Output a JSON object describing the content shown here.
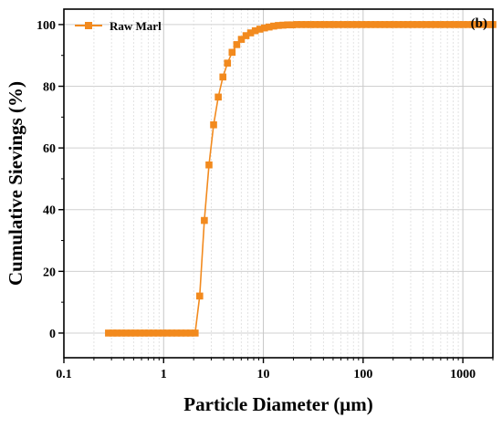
{
  "chart_data": {
    "type": "line",
    "panel_label": "(b)",
    "xlabel": "Particle Diameter (μm)",
    "ylabel": "Cumulative Sievings (%)",
    "x_scale": "log",
    "xlim": [
      0.1,
      2000
    ],
    "ylim": [
      -8,
      105
    ],
    "x_ticks": [
      0.1,
      1,
      10,
      100,
      1000
    ],
    "x_tick_labels": [
      "0.1",
      "1",
      "10",
      "100",
      "1000"
    ],
    "y_ticks": [
      0,
      20,
      40,
      60,
      80,
      100
    ],
    "y_tick_labels": [
      "0",
      "20",
      "40",
      "60",
      "80",
      "100"
    ],
    "grid": true,
    "legend_position": "top-left",
    "color": "#F28A1E",
    "series": [
      {
        "name": "Raw Marl",
        "x": [
          0.28,
          0.31,
          0.34,
          0.38,
          0.42,
          0.47,
          0.52,
          0.58,
          0.64,
          0.71,
          0.79,
          0.88,
          0.98,
          1.09,
          1.21,
          1.35,
          1.5,
          1.67,
          1.86,
          2.07,
          2.3,
          2.56,
          2.85,
          3.17,
          3.53,
          3.93,
          4.37,
          4.86,
          5.41,
          6.02,
          6.7,
          7.45,
          8.29,
          9.22,
          10.26,
          11.41,
          12.7,
          14.13,
          15.72,
          17.49,
          19.46,
          21.65,
          24.09,
          26.8,
          29.82,
          33.18,
          36.92,
          41.08,
          45.71,
          50.86,
          56.59,
          62.97,
          70.07,
          77.97,
          86.76,
          96.54,
          107.4,
          119.5,
          133.0,
          148.0,
          164.7,
          183.3,
          204.0,
          227.0,
          252.6,
          281.1,
          312.8,
          348.1,
          387.3,
          431.0,
          479.6,
          533.7,
          593.9,
          660.9,
          735.4,
          818.4,
          910.7,
          1013,
          1127,
          1254,
          1396,
          1553,
          1728,
          1923,
          2000
        ],
        "y": [
          0,
          0,
          0,
          0,
          0,
          0,
          0,
          0,
          0,
          0,
          0,
          0,
          0,
          0,
          0,
          0,
          0,
          0,
          0,
          0,
          12,
          36.5,
          54.5,
          67.5,
          76.5,
          83,
          87.5,
          91,
          93.5,
          95.2,
          96.4,
          97.3,
          98,
          98.5,
          98.9,
          99.2,
          99.5,
          99.7,
          99.8,
          99.9,
          99.9,
          100,
          100,
          100,
          100,
          100,
          100,
          100,
          100,
          100,
          100,
          100,
          100,
          100,
          100,
          100,
          100,
          100,
          100,
          100,
          100,
          100,
          100,
          100,
          100,
          100,
          100,
          100,
          100,
          100,
          100,
          100,
          100,
          100,
          100,
          100,
          100,
          100,
          100,
          100,
          100,
          100,
          100,
          100,
          100
        ]
      }
    ]
  }
}
